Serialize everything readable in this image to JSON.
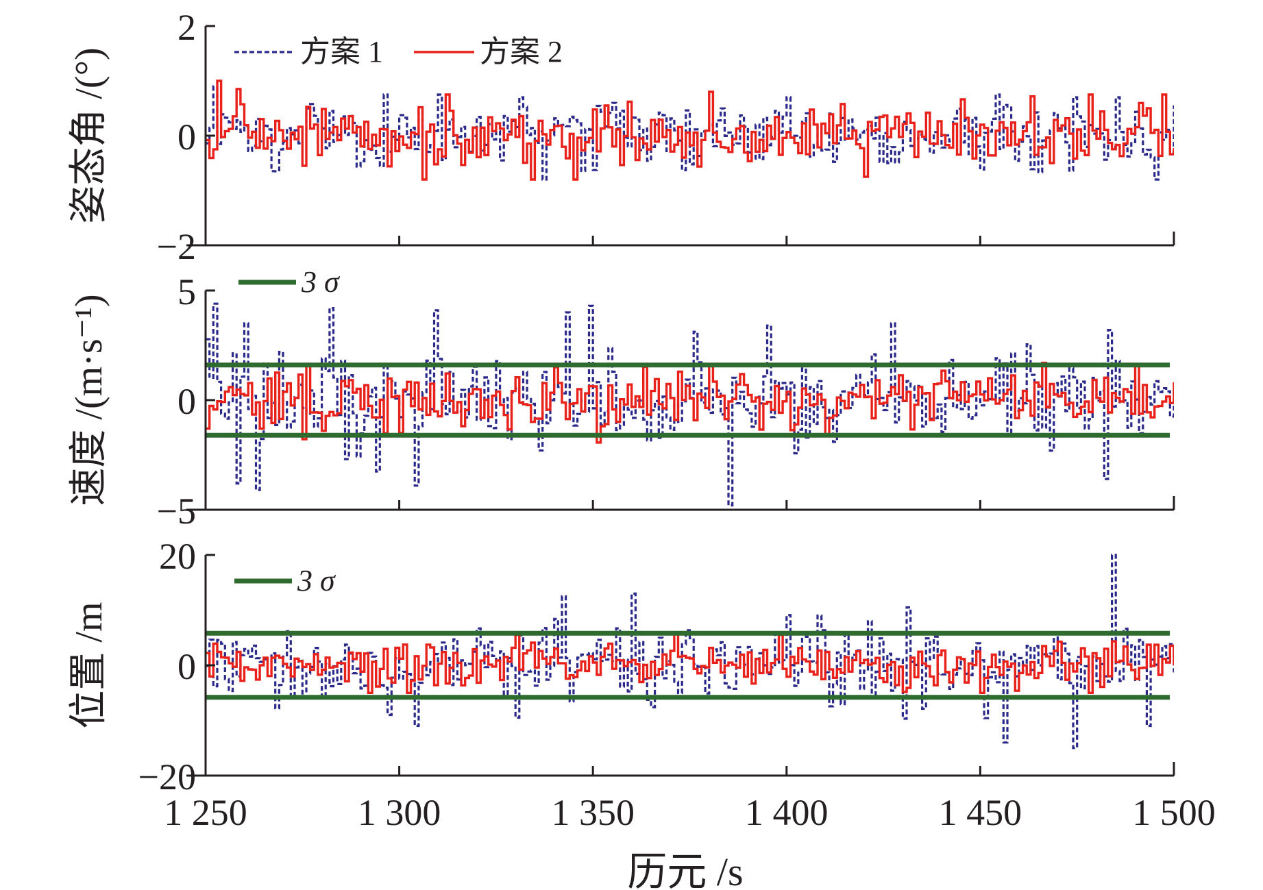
{
  "figure": {
    "xlabel": "历元 /s",
    "xlim": [
      1250,
      1500
    ],
    "xticks": [
      {
        "value": 1250,
        "label": "1 250"
      },
      {
        "value": 1300,
        "label": "1 300"
      },
      {
        "value": 1350,
        "label": "1 350"
      },
      {
        "value": 1400,
        "label": "1 400"
      },
      {
        "value": 1450,
        "label": "1 450"
      },
      {
        "value": 1500,
        "label": "1 500"
      }
    ],
    "colors": {
      "scheme1": "#2b2a8a",
      "scheme2": "#e8221b",
      "sigma": "#2e6b2f",
      "axis": "#231f20"
    }
  },
  "chart_data": [
    {
      "type": "line",
      "ylabel": "姿态角 /(°)",
      "ylim": [
        -2,
        2
      ],
      "yticks": [
        {
          "value": 2,
          "label": "2"
        },
        {
          "value": 0,
          "label": "0"
        },
        {
          "value": -2,
          "label": "−2"
        }
      ],
      "legend": [
        {
          "name": "方案 1",
          "style": "dashed",
          "color": "#2b2a8a"
        },
        {
          "name": "方案 2",
          "style": "solid",
          "color": "#e8221b"
        }
      ],
      "series": [
        {
          "name": "方案 1",
          "style": "dashed",
          "amplitude": 0.33,
          "extremes": [
            [
              1252,
              0.9
            ],
            [
              1296,
              0.75
            ],
            [
              1310,
              0.75
            ],
            [
              1331,
              0.7
            ],
            [
              1337,
              -0.8
            ],
            [
              1400,
              0.7
            ],
            [
              1454,
              0.75
            ],
            [
              1474,
              0.7
            ],
            [
              1485,
              0.7
            ],
            [
              1495,
              -0.8
            ],
            [
              1268,
              -0.65
            ]
          ]
        },
        {
          "name": "方案 2",
          "style": "solid",
          "amplitude": 0.3,
          "extremes": [
            [
              1253,
              1.0
            ],
            [
              1258,
              0.85
            ],
            [
              1275,
              -0.55
            ],
            [
              1306,
              -0.8
            ],
            [
              1312,
              0.75
            ],
            [
              1334,
              -0.8
            ],
            [
              1345,
              -0.8
            ],
            [
              1380,
              0.8
            ],
            [
              1420,
              -0.75
            ],
            [
              1478,
              0.75
            ],
            [
              1497,
              0.75
            ]
          ]
        }
      ],
      "sigma": null
    },
    {
      "type": "line",
      "ylabel": "速度 /(m·s⁻¹)",
      "ylim": [
        -5,
        5
      ],
      "yticks": [
        {
          "value": 5,
          "label": "5"
        },
        {
          "value": 0,
          "label": "0"
        },
        {
          "value": -5,
          "label": "−5"
        }
      ],
      "legend": [
        {
          "name": "3 σ",
          "style": "solid",
          "color": "#2e6b2f"
        }
      ],
      "series": [
        {
          "name": "方案 1",
          "style": "dashed",
          "amplitude": 1.25,
          "extremes": [
            [
              1252,
              4.4
            ],
            [
              1258,
              -3.8
            ],
            [
              1260,
              3.5
            ],
            [
              1263,
              -4.1
            ],
            [
              1282,
              4.2
            ],
            [
              1304,
              -3.9
            ],
            [
              1309,
              4.1
            ],
            [
              1343,
              4.0
            ],
            [
              1349,
              4.3
            ],
            [
              1385,
              -4.8
            ],
            [
              1395,
              3.4
            ],
            [
              1427,
              3.5
            ],
            [
              1482,
              -3.6
            ],
            [
              1483,
              3.2
            ]
          ]
        },
        {
          "name": "方案 2",
          "style": "solid",
          "amplitude": 0.75,
          "extremes": [
            [
              1276,
              1.6
            ],
            [
              1300,
              -1.5
            ],
            [
              1380,
              1.6
            ],
            [
              1410,
              -1.6
            ],
            [
              1466,
              1.7
            ],
            [
              1490,
              1.6
            ]
          ]
        }
      ],
      "sigma": 1.6
    },
    {
      "type": "line",
      "ylabel": "位置 /m",
      "ylim": [
        -20,
        20
      ],
      "yticks": [
        {
          "value": 20,
          "label": "20"
        },
        {
          "value": 0,
          "label": "0"
        },
        {
          "value": -20,
          "label": "−20"
        }
      ],
      "legend": [
        {
          "name": "3 σ",
          "style": "solid",
          "color": "#2e6b2f"
        }
      ],
      "series": [
        {
          "name": "方案 1",
          "style": "dashed",
          "amplitude": 4.0,
          "extremes": [
            [
              1342,
              12.5
            ],
            [
              1360,
              13.0
            ],
            [
              1304,
              -11.0
            ],
            [
              1456,
              -14.0
            ],
            [
              1474,
              -15.0
            ],
            [
              1484,
              20.0
            ],
            [
              1493,
              -11.0
            ],
            [
              1330,
              -9.5
            ],
            [
              1431,
              10.5
            ],
            [
              1408,
              9.0
            ]
          ]
        },
        {
          "name": "方案 2",
          "style": "solid",
          "amplitude": 2.5,
          "extremes": [
            [
              1292,
              -5.0
            ],
            [
              1302,
              -5.0
            ],
            [
              1330,
              5.5
            ],
            [
              1371,
              5.8
            ],
            [
              1398,
              5.5
            ],
            [
              1450,
              -5.0
            ],
            [
              1478,
              -5.0
            ]
          ]
        }
      ],
      "sigma": 5.8
    }
  ]
}
